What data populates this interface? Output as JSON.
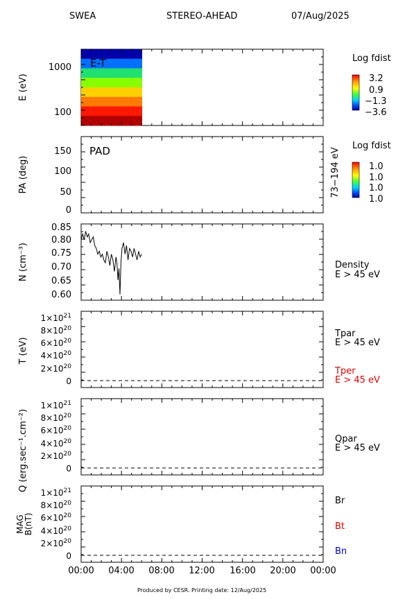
{
  "header": {
    "instrument": "SWEA",
    "spacecraft": "STEREO-AHEAD",
    "date": "07/Aug/2025"
  },
  "footer": {
    "text": "Produced by CESR.   Printing date: 12/Aug/2025"
  },
  "time_axis": {
    "ticks": [
      "00:00",
      "04:00",
      "08:00",
      "12:00",
      "16:00",
      "20:00",
      "00:00"
    ]
  },
  "colors": {
    "black": "#000000",
    "red": "#dd0000",
    "blue": "#0000cc"
  },
  "chart_data": [
    {
      "type": "heatmap",
      "panel": "et",
      "inset_label": "E-T",
      "ylabel": "E (eV)",
      "yscale": "log",
      "ylim": [
        50,
        2200
      ],
      "y_ticks": [
        "1000",
        "100"
      ],
      "x_range_hours": [
        0,
        6.05
      ],
      "energy_band_colors": [
        "#0000a8",
        "#0070ff",
        "#20e070",
        "#88ff00",
        "#ffd000",
        "#ff7a00",
        "#ff1800",
        "#b00000"
      ],
      "colorbar": {
        "title": "Log fdist",
        "labels": [
          "3.2",
          "0.9",
          "−1.3",
          "−3.6"
        ]
      }
    },
    {
      "type": "heatmap",
      "panel": "pad",
      "inset_label": "PAD",
      "ylabel": "PA (deg)",
      "ylim": [
        0,
        180
      ],
      "y_ticks": [
        "150",
        "100",
        "50",
        "0"
      ],
      "right_label": "73−194 eV",
      "colorbar": {
        "title": "Log fdist",
        "labels": [
          "1.0",
          "1.0",
          "1.0",
          "1.0"
        ]
      }
    },
    {
      "type": "line",
      "panel": "density",
      "ylabel": "N (cm⁻³)",
      "ylim": [
        0.59,
        0.855
      ],
      "y_ticks": [
        "0.85",
        "0.80",
        "0.75",
        "0.70",
        "0.65",
        "0.60"
      ],
      "right_labels": [
        "Density",
        "E > 45 eV"
      ],
      "x_hours": [
        0.0,
        0.15,
        0.3,
        0.45,
        0.6,
        0.75,
        0.9,
        1.05,
        1.2,
        1.35,
        1.5,
        1.65,
        1.8,
        1.95,
        2.1,
        2.25,
        2.4,
        2.55,
        2.7,
        2.85,
        3.0,
        3.15,
        3.3,
        3.45,
        3.55,
        3.65,
        3.75,
        3.85,
        3.95,
        4.05,
        4.2,
        4.35,
        4.5,
        4.65,
        4.8,
        4.95,
        5.1,
        5.25,
        5.4,
        5.55,
        5.7,
        5.85,
        6.0
      ],
      "values": [
        0.8,
        0.82,
        0.8,
        0.83,
        0.81,
        0.82,
        0.79,
        0.8,
        0.81,
        0.78,
        0.77,
        0.75,
        0.76,
        0.74,
        0.75,
        0.73,
        0.72,
        0.76,
        0.74,
        0.71,
        0.75,
        0.73,
        0.69,
        0.74,
        0.72,
        0.66,
        0.7,
        0.61,
        0.72,
        0.77,
        0.79,
        0.75,
        0.78,
        0.73,
        0.77,
        0.76,
        0.74,
        0.77,
        0.75,
        0.73,
        0.76,
        0.74,
        0.75
      ]
    },
    {
      "type": "line",
      "panel": "temperature",
      "ylabel": "T (eV)",
      "ylim": [
        -1e+20,
        1.1e+21
      ],
      "y_ticks": [
        {
          "mantissa": "1×10",
          "exp": "21"
        },
        {
          "mantissa": "8×10",
          "exp": "20"
        },
        {
          "mantissa": "6×10",
          "exp": "20"
        },
        {
          "mantissa": "4×10",
          "exp": "20"
        },
        {
          "mantissa": "2×10",
          "exp": "20"
        },
        {
          "mantissa": "0",
          "exp": ""
        }
      ],
      "right_labels_black": [
        "Tpar",
        "E > 45 eV"
      ],
      "right_labels_red": [
        "Tper",
        "E > 45 eV"
      ],
      "series": [
        {
          "values": [
            0,
            0
          ]
        }
      ]
    },
    {
      "type": "line",
      "panel": "heatflux",
      "ylabel": "Q (erg.sec⁻¹.cm⁻²)",
      "ylim": [
        -1e+20,
        1.1e+21
      ],
      "y_ticks": [
        {
          "mantissa": "1×10",
          "exp": "21"
        },
        {
          "mantissa": "8×10",
          "exp": "20"
        },
        {
          "mantissa": "6×10",
          "exp": "20"
        },
        {
          "mantissa": "4×10",
          "exp": "20"
        },
        {
          "mantissa": "2×10",
          "exp": "20"
        },
        {
          "mantissa": "0",
          "exp": ""
        }
      ],
      "right_labels": [
        "Qpar",
        "E > 45 eV"
      ],
      "series": [
        {
          "values": [
            0,
            0
          ]
        }
      ]
    },
    {
      "type": "line",
      "panel": "mag",
      "ylabel_lines": [
        "MAG",
        "B(nT)"
      ],
      "ylim": [
        -1e+20,
        1.1e+21
      ],
      "y_ticks": [
        {
          "mantissa": "1×10",
          "exp": "21"
        },
        {
          "mantissa": "8×10",
          "exp": "20"
        },
        {
          "mantissa": "6×10",
          "exp": "20"
        },
        {
          "mantissa": "4×10",
          "exp": "20"
        },
        {
          "mantissa": "2×10",
          "exp": "20"
        },
        {
          "mantissa": "0",
          "exp": ""
        }
      ],
      "right_labels": {
        "br": "Br",
        "bt": "Bt",
        "bn": "Bn"
      },
      "series": [
        {
          "values": [
            0,
            0
          ]
        }
      ]
    }
  ]
}
